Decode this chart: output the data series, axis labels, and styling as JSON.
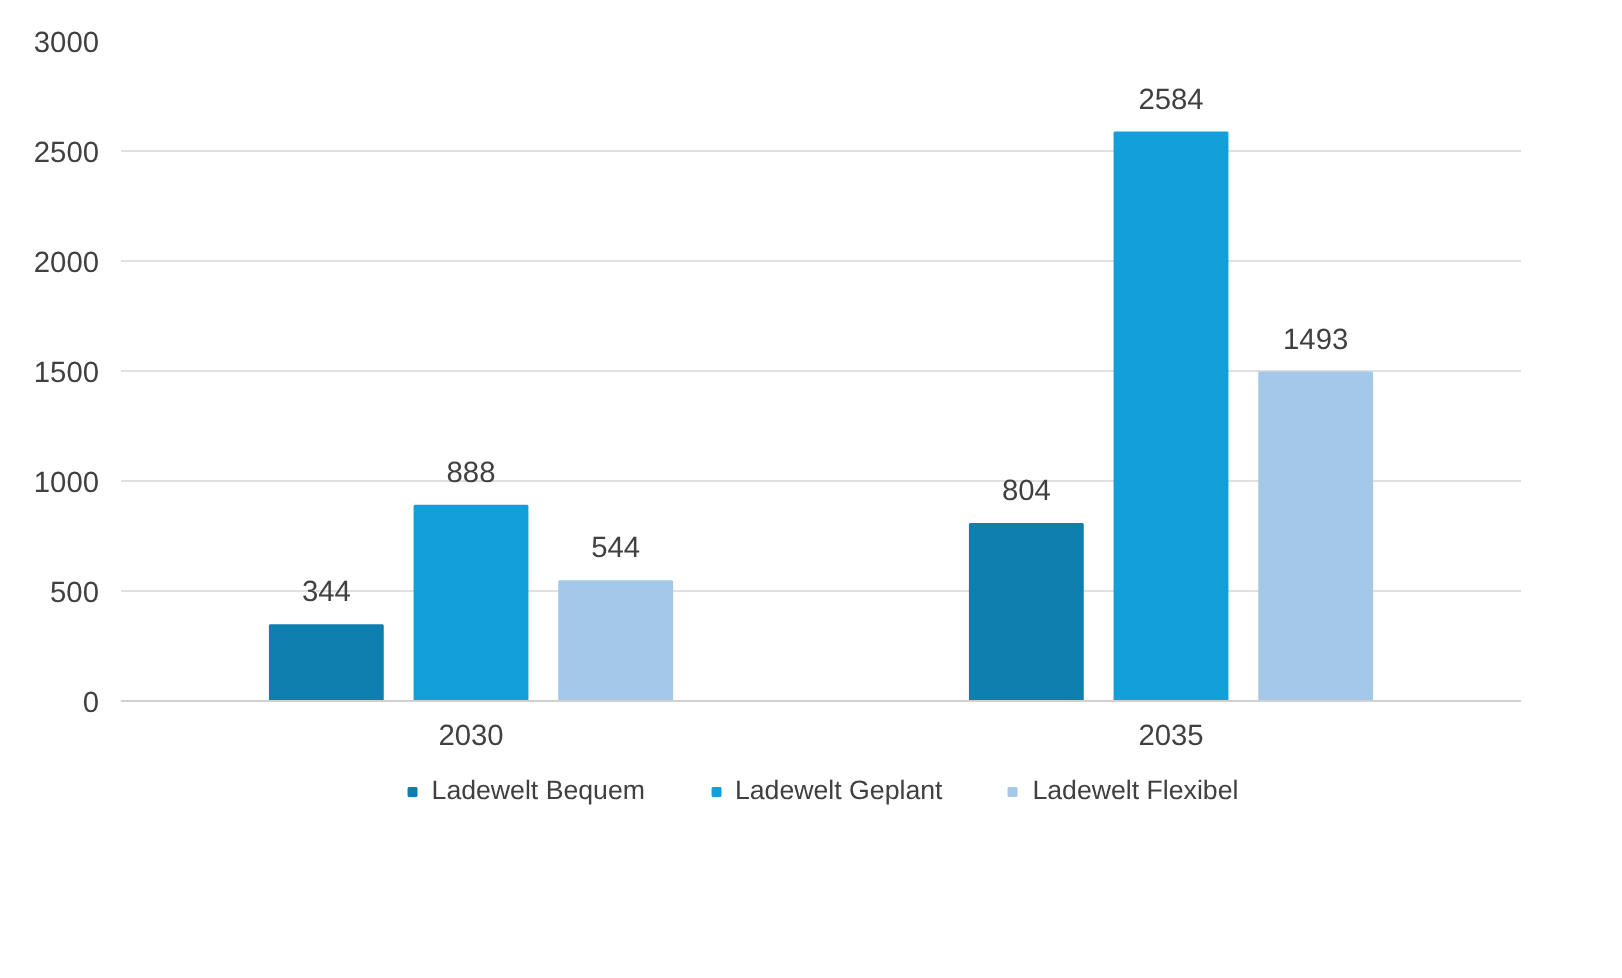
{
  "chart_data": {
    "type": "bar",
    "categories": [
      "2030",
      "2035"
    ],
    "series": [
      {
        "name": "Ladewelt Bequem",
        "color": "#0e7fae",
        "values": [
          344,
          804
        ]
      },
      {
        "name": "Ladewelt Geplant",
        "color": "#129fda",
        "values": [
          888,
          2584
        ]
      },
      {
        "name": "Ladewelt Flexibel",
        "color": "#a4c8e8",
        "values": [
          544,
          1493
        ]
      }
    ],
    "ylim": [
      0,
      3000
    ],
    "yticks": [
      0,
      500,
      1000,
      1500,
      2000,
      2500,
      3000
    ],
    "grid": "y",
    "legend": "bottom",
    "data_labels": true
  }
}
